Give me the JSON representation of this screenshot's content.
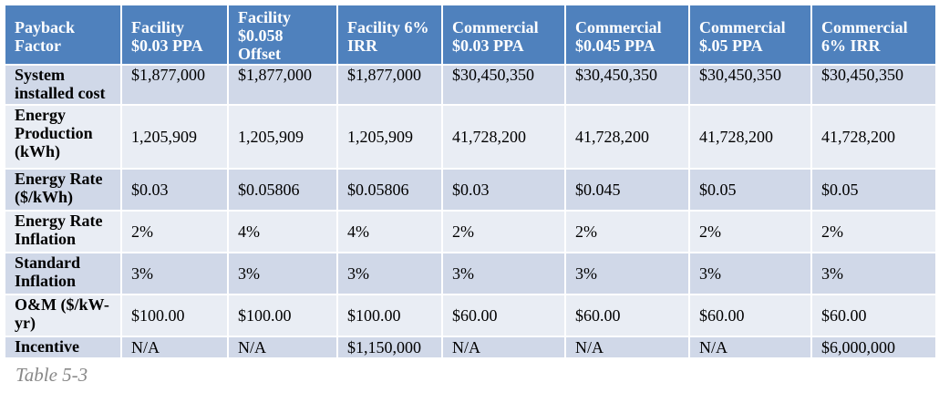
{
  "table": {
    "headers": [
      "Payback Factor",
      "Facility $0.03 PPA",
      "Facility $0.058 Offset",
      "Facility 6% IRR",
      "Commercial $0.03 PPA",
      "Commercial $0.045 PPA",
      "Commercial $.05 PPA",
      "Commercial 6% IRR"
    ],
    "rows": [
      {
        "label": "System installed cost",
        "cells": [
          "$1,877,000",
          "$1,877,000",
          "$1,877,000",
          "$30,450,350",
          "$30,450,350",
          "$30,450,350",
          "$30,450,350"
        ]
      },
      {
        "label": "Energy Production (kWh)",
        "cells": [
          "1,205,909",
          "1,205,909",
          "1,205,909",
          "41,728,200",
          "41,728,200",
          "41,728,200",
          "41,728,200"
        ]
      },
      {
        "label": "Energy Rate ($/kWh)",
        "cells": [
          "$0.03",
          "$0.05806",
          "$0.05806",
          "$0.03",
          "$0.045",
          "$0.05",
          "$0.05"
        ]
      },
      {
        "label": "Energy Rate Inflation",
        "cells": [
          "2%",
          "4%",
          "4%",
          "2%",
          "2%",
          "2%",
          "2%"
        ]
      },
      {
        "label": "Standard Inflation",
        "cells": [
          "3%",
          "3%",
          "3%",
          "3%",
          "3%",
          "3%",
          "3%"
        ]
      },
      {
        "label": "O&M ($/kW-yr)",
        "cells": [
          "$100.00",
          "$100.00",
          "$100.00",
          "$60.00",
          "$60.00",
          "$60.00",
          "$60.00"
        ]
      },
      {
        "label": "Incentive",
        "cells": [
          "N/A",
          "N/A",
          "$1,150,000",
          "N/A",
          "N/A",
          "N/A",
          "$6,000,000"
        ]
      }
    ]
  },
  "caption": "Table 5-3",
  "colors": {
    "header": "#4f81bd",
    "row_light": "#d0d8e8",
    "row_pale": "#e9edf4",
    "caption": "#888888"
  }
}
